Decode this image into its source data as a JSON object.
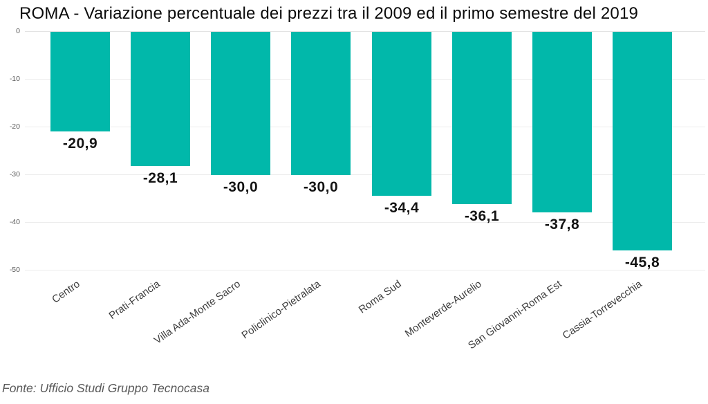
{
  "colors": {
    "bar": "#01B8AA",
    "grid": "#ececec",
    "title_text": "#0b0b0b",
    "tick_text": "#5c5c5c",
    "category_text": "#3d3d3d",
    "value_text": "#141414",
    "source_text": "#595959",
    "background": "#ffffff"
  },
  "chart_data": {
    "type": "bar",
    "title": "ROMA - Variazione percentuale dei prezzi tra il 2009 ed il primo semestre del 2019",
    "categories": [
      "Centro",
      "Prati-Francia",
      "Villa Ada-Monte Sacro",
      "Policlinico-Pietralata",
      "Roma Sud",
      "Monteverde-Aurelio",
      "San Giovanni-Roma Est",
      "Cassia-Torrevecchia"
    ],
    "values": [
      -20.9,
      -28.1,
      -30.0,
      -30.0,
      -34.4,
      -36.1,
      -37.8,
      -45.8
    ],
    "value_labels": [
      "-20,9",
      "-28,1",
      "-30,0",
      "-30,0",
      "-34,4",
      "-36,1",
      "-37,8",
      "-45,8"
    ],
    "xlabel": "",
    "ylabel": "",
    "ylim": [
      -50,
      0
    ],
    "yticks": [
      0,
      -10,
      -20,
      -30,
      -40,
      -50
    ],
    "ytick_labels": [
      "0",
      "-10",
      "-20",
      "-30",
      "-40",
      "-50"
    ],
    "grid": true,
    "legend": false,
    "bar_color": "#01B8AA",
    "source": "Fonte: Ufficio Studi Gruppo Tecnocasa"
  }
}
